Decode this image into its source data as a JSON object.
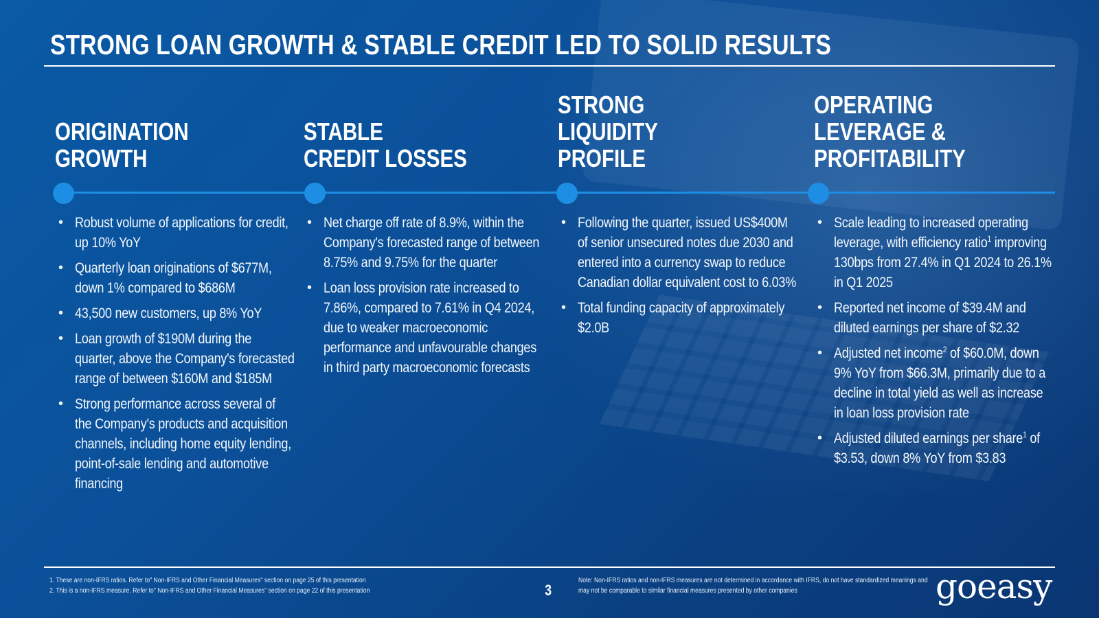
{
  "slide": {
    "title": "STRONG LOAN GROWTH & STABLE CREDIT LED TO SOLID RESULTS",
    "page_number": "3"
  },
  "columns": [
    {
      "heading": [
        "ORIGINATION",
        "GROWTH"
      ],
      "bullets": [
        "Robust volume of applications for credit, up 10% YoY",
        "Quarterly loan originations of $677M, down 1% compared to $686M",
        "43,500 new customers, up 8% YoY",
        "Loan growth of $190M during the quarter, above the Company's forecasted range of between $160M and $185M",
        "Strong performance across several of the Company's products and acquisition channels, including home equity lending, point-of-sale lending and automotive financing"
      ]
    },
    {
      "heading": [
        "STABLE",
        "CREDIT LOSSES"
      ],
      "bullets": [
        "Net charge off rate of 8.9%, within the Company's forecasted range of between 8.75% and 9.75% for the quarter",
        "Loan loss provision rate increased to 7.86%, compared to 7.61% in Q4 2024, due to weaker macroeconomic performance and unfavourable changes in third party macroeconomic forecasts"
      ]
    },
    {
      "heading": [
        "STRONG",
        "LIQUIDITY",
        "PROFILE"
      ],
      "bullets": [
        "Following the quarter, issued US$400M of senior unsecured notes due 2030 and entered into a currency swap to reduce Canadian dollar equivalent cost to 6.03%",
        "Total funding capacity of approximately $2.0B"
      ]
    },
    {
      "heading": [
        "OPERATING",
        "LEVERAGE &",
        "PROFITABILITY"
      ],
      "bullets": [
        {
          "before": "Scale leading to increased operating leverage, with efficiency ratio",
          "sup": "1",
          "after": " improving 130bps from 27.4% in Q1 2024 to 26.1% in Q1 2025"
        },
        {
          "before": "Reported net income of $39.4M and diluted earnings per share of $2.32",
          "sup": "",
          "after": ""
        },
        {
          "before": "Adjusted net income",
          "sup": "2",
          "after": " of $60.0M, down 9% YoY from $66.3M, primarily due to a decline in total yield as well as increase in loan loss provision rate"
        },
        {
          "before": "Adjusted diluted earnings per share",
          "sup": "1",
          "after": " of $3.53, down 8% YoY from $3.83"
        }
      ]
    }
  ],
  "footnotes": [
    "1.   These are non-IFRS ratios. Refer to\" Non-IFRS and Other Financial Measures\" section on page 25 of this presentation",
    "2.   This is a non-IFRS measure. Refer to\" Non-IFRS and Other Financial Measures\" section on page 22 of this presentation"
  ],
  "note": "Note: Non-IFRS ratios and non-IFRS measures are not determined in accordance with IFRS, do not have standardized meanings and may not be comparable to similar financial measures presented by other companies",
  "logo_text": "goeasy",
  "colors": {
    "background": "#0b4f98",
    "accent": "#1d8ee3",
    "text": "#ffffff"
  }
}
